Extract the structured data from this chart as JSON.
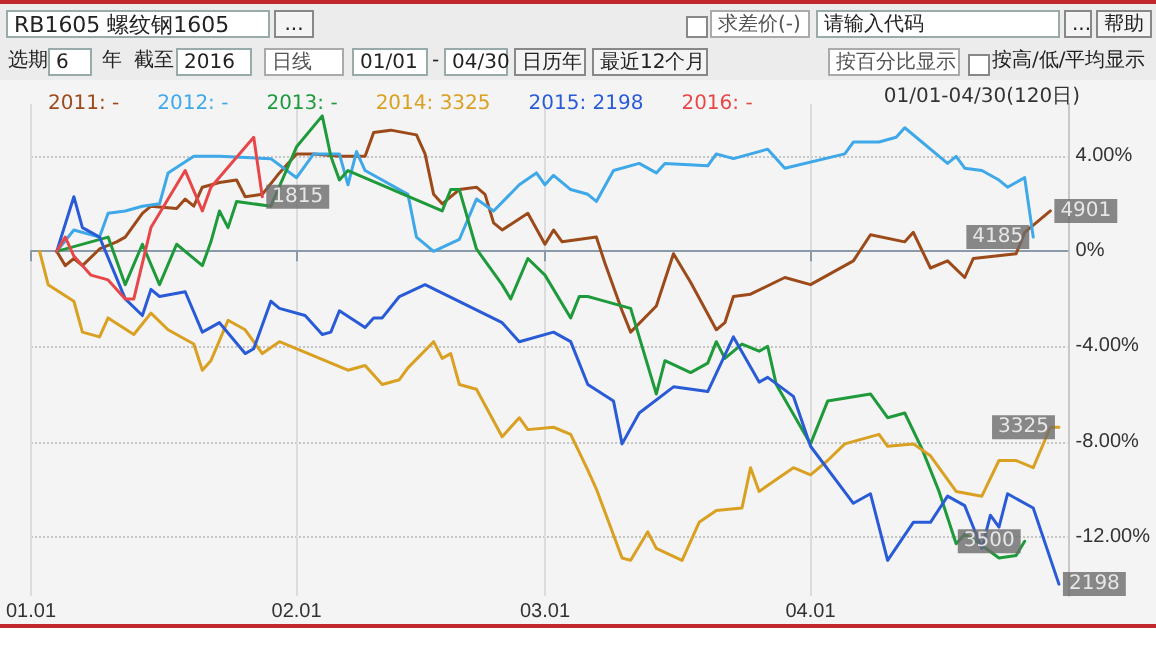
{
  "chart_data": {
    "type": "line",
    "title": "RB1605  螺纹钢1605",
    "subtitle": "01/01-04/30(120日)",
    "annotations": [
      "...",
      "求差价(-)",
      "请输入代码",
      "...",
      "帮助",
      "选期",
      "6",
      "年",
      "截至",
      "2016",
      "日线",
      "01/01",
      "-",
      "04/30",
      "日历年",
      "最近12个月",
      "按百分比显示",
      "按高/低/平均显示",
      {
        "text": "1815",
        "x": "--01-28",
        "y": 2.3
      },
      {
        "text": "4901",
        "x": "--04-29",
        "y": 1.7
      },
      {
        "text": "4185",
        "x": "--04-27",
        "y": 0.6
      },
      {
        "text": "3325",
        "x": "--04-30",
        "y": -7.4
      },
      {
        "text": "3500",
        "x": "--04-26",
        "y": -12.2
      },
      {
        "text": "2198",
        "x": "--04-30",
        "y": -14.0
      }
    ],
    "xlim": [
      "--01-01",
      "--05-01"
    ],
    "xticks": [
      {
        "value": "--01-01",
        "label": "01.01"
      },
      {
        "value": "--02-01",
        "label": "02.01"
      },
      {
        "value": "--03-01",
        "label": "03.01"
      },
      {
        "value": "--04-01",
        "label": "04.01"
      }
    ],
    "ylim": [
      -14.5,
      6.2
    ],
    "yticks": [
      {
        "value": 4,
        "label": "4.00%"
      },
      {
        "value": 0,
        "label": "0%"
      },
      {
        "value": -4,
        "label": "-4.00%"
      },
      {
        "value": -8,
        "label": "-8.00%"
      },
      {
        "value": -12,
        "label": "-12.00%"
      }
    ],
    "grid": true,
    "legend": "top left",
    "series": [
      {
        "name": "2011: -",
        "color": "#9c4a1a",
        "x": [
          "--01-04",
          "--01-05",
          "--01-06",
          "--01-07",
          "--01-09",
          "--01-11",
          "--01-12",
          "--01-14",
          "--01-15",
          "--01-18",
          "--01-19",
          "--01-20",
          "--01-21",
          "--01-23",
          "--01-25",
          "--01-26",
          "--01-28",
          "--01-30",
          "--02-01",
          "--02-03",
          "--02-06",
          "--02-09",
          "--02-10",
          "--02-12",
          "--02-15",
          "--02-16",
          "--02-17",
          "--02-18",
          "--02-20",
          "--02-22",
          "--02-23",
          "--02-24",
          "--02-25",
          "--02-28",
          "--03-01",
          "--03-02",
          "--03-03",
          "--03-07",
          "--03-08",
          "--03-10",
          "--03-11",
          "--03-14",
          "--03-16",
          "--03-18",
          "--03-21",
          "--03-22",
          "--03-23",
          "--03-25",
          "--03-29",
          "--04-01",
          "--04-06",
          "--04-08",
          "--04-12",
          "--04-13",
          "--04-15",
          "--04-17",
          "--04-19",
          "--04-20",
          "--04-25",
          "--04-26",
          "--04-29"
        ],
        "values": [
          0,
          -0.6,
          -0.3,
          -0.6,
          0.1,
          0.4,
          0.6,
          1.6,
          1.9,
          1.8,
          2.2,
          1.9,
          2.7,
          2.9,
          3.0,
          2.3,
          2.4,
          3.3,
          4.1,
          4.1,
          4.0,
          4.0,
          5.0,
          5.1,
          4.9,
          4.1,
          2.4,
          2.0,
          2.6,
          2.7,
          2.4,
          1.2,
          0.9,
          1.6,
          0.3,
          0.9,
          0.4,
          0.6,
          -0.5,
          -2.5,
          -3.4,
          -2.3,
          -0.1,
          -1.3,
          -3.3,
          -3.0,
          -1.9,
          -1.8,
          -1.1,
          -1.4,
          -0.4,
          0.7,
          0.4,
          0.8,
          -0.7,
          -0.4,
          -1.1,
          -0.3,
          -0.1,
          0.8,
          1.7
        ]
      },
      {
        "name": "2012: -",
        "color": "#3ea8e8",
        "x": [
          "--01-04",
          "--01-06",
          "--01-09",
          "--01-10",
          "--01-12",
          "--01-14",
          "--01-16",
          "--01-17",
          "--01-20",
          "--01-23",
          "--01-29",
          "--02-01",
          "--02-03",
          "--02-06",
          "--02-07",
          "--02-08",
          "--02-09",
          "--02-14",
          "--02-15",
          "--02-17",
          "--02-20",
          "--02-22",
          "--02-24",
          "--02-27",
          "--02-29",
          "--03-01",
          "--03-02",
          "--03-04",
          "--03-06",
          "--03-07",
          "--03-09",
          "--03-12",
          "--03-14",
          "--03-15",
          "--03-20",
          "--03-21",
          "--03-23",
          "--03-27",
          "--03-29",
          "--04-05",
          "--04-06",
          "--04-09",
          "--04-11",
          "--04-12",
          "--04-17",
          "--04-18",
          "--04-19",
          "--04-21",
          "--04-23",
          "--04-24",
          "--04-26",
          "--04-27"
        ],
        "values": [
          0,
          0.9,
          0.6,
          1.6,
          1.7,
          1.9,
          2.0,
          3.3,
          4.0,
          4.0,
          3.9,
          3.1,
          4.1,
          4.1,
          2.8,
          4.2,
          3.4,
          2.4,
          0.6,
          0,
          0.5,
          2.2,
          1.7,
          2.8,
          3.3,
          2.8,
          3.2,
          2.6,
          2.4,
          2.1,
          3.4,
          3.7,
          3.3,
          3.7,
          3.6,
          4.1,
          3.9,
          4.3,
          3.5,
          4.1,
          4.6,
          4.6,
          4.8,
          5.2,
          3.7,
          4.0,
          3.5,
          3.4,
          3.0,
          2.7,
          3.1,
          0.6
        ]
      },
      {
        "name": "2013: -",
        "color": "#1e9a3a",
        "x": [
          "--01-04",
          "--01-08",
          "--01-10",
          "--01-12",
          "--01-14",
          "--01-16",
          "--01-18",
          "--01-21",
          "--01-22",
          "--01-23",
          "--01-24",
          "--01-25",
          "--01-29",
          "--02-01",
          "--02-04",
          "--02-05",
          "--02-06",
          "--02-07",
          "--02-18",
          "--02-19",
          "--02-20",
          "--02-22",
          "--02-25",
          "--02-26",
          "--02-28",
          "--03-01",
          "--03-04",
          "--03-05",
          "--03-06",
          "--03-07",
          "--03-11",
          "--03-14",
          "--03-15",
          "--03-18",
          "--03-20",
          "--03-21",
          "--03-22",
          "--03-24",
          "--03-26",
          "--03-27",
          "--03-28",
          "--04-01",
          "--04-03",
          "--04-08",
          "--04-10",
          "--04-12",
          "--04-14",
          "--04-16",
          "--04-18",
          "--04-19",
          "--04-20",
          "--04-23",
          "--04-25",
          "--04-26"
        ],
        "values": [
          0,
          0.4,
          0.6,
          -1.4,
          0.3,
          -1.4,
          0.3,
          -0.6,
          0.4,
          1.7,
          1.0,
          2.1,
          1.9,
          4.4,
          5.7,
          4.0,
          3.0,
          3.4,
          1.7,
          2.6,
          2.6,
          0.1,
          -1.4,
          -2.0,
          -0.3,
          -1.0,
          -2.8,
          -1.9,
          -1.9,
          -2.0,
          -2.4,
          -6.0,
          -4.6,
          -5.1,
          -4.7,
          -3.8,
          -4.5,
          -3.9,
          -4.2,
          -4.0,
          -5.6,
          -8.1,
          -6.3,
          -6.0,
          -7.0,
          -6.8,
          -8.3,
          -10.1,
          -12.3,
          -11.9,
          -12.1,
          -12.9,
          -12.8,
          -12.2
        ]
      },
      {
        "name": "2014: 3325",
        "color": "#d9a021",
        "x": [
          "--01-02",
          "--01-03",
          "--01-06",
          "--01-07",
          "--01-09",
          "--01-10",
          "--01-13",
          "--01-15",
          "--01-17",
          "--01-20",
          "--01-21",
          "--01-22",
          "--01-24",
          "--01-26",
          "--01-28",
          "--01-30",
          "--02-07",
          "--02-09",
          "--02-11",
          "--02-13",
          "--02-14",
          "--02-17",
          "--02-18",
          "--02-19",
          "--02-20",
          "--02-22",
          "--02-25",
          "--02-27",
          "--02-28",
          "--03-02",
          "--03-04",
          "--03-06",
          "--03-07",
          "--03-10",
          "--03-11",
          "--03-13",
          "--03-14",
          "--03-17",
          "--03-19",
          "--03-21",
          "--03-24",
          "--03-25",
          "--03-26",
          "--03-28",
          "--03-30",
          "--04-01",
          "--04-03",
          "--04-05",
          "--04-09",
          "--04-10",
          "--04-13",
          "--04-15",
          "--04-18",
          "--04-21",
          "--04-23",
          "--04-25",
          "--04-27",
          "--04-29",
          "--04-30"
        ],
        "values": [
          0,
          -1.4,
          -2.1,
          -3.4,
          -3.6,
          -2.8,
          -3.5,
          -2.6,
          -3.3,
          -3.9,
          -5.0,
          -4.6,
          -2.9,
          -3.3,
          -4.3,
          -3.8,
          -5.0,
          -4.8,
          -5.6,
          -5.4,
          -4.9,
          -3.8,
          -4.5,
          -4.3,
          -5.6,
          -5.8,
          -7.8,
          -7.0,
          -7.5,
          -7.4,
          -7.7,
          -9.2,
          -10.0,
          -12.9,
          -13.0,
          -11.8,
          -12.5,
          -13.0,
          -11.4,
          -10.9,
          -10.8,
          -9.1,
          -10.1,
          -9.6,
          -9.1,
          -9.4,
          -8.8,
          -8.1,
          -7.7,
          -8.2,
          -8.1,
          -8.6,
          -10.1,
          -10.3,
          -8.8,
          -8.8,
          -9.1,
          -7.4,
          -7.4
        ]
      },
      {
        "name": "2015: 2198",
        "color": "#2a5bd7",
        "x": [
          "--01-04",
          "--01-06",
          "--01-07",
          "--01-09",
          "--01-12",
          "--01-14",
          "--01-15",
          "--01-16",
          "--01-19",
          "--01-21",
          "--01-23",
          "--01-26",
          "--01-27",
          "--01-29",
          "--01-30",
          "--02-02",
          "--02-04",
          "--02-05",
          "--02-06",
          "--02-09",
          "--02-10",
          "--02-11",
          "--02-13",
          "--02-16",
          "--02-25",
          "--02-27",
          "--03-02",
          "--03-04",
          "--03-06",
          "--03-09",
          "--03-10",
          "--03-12",
          "--03-16",
          "--03-20",
          "--03-23",
          "--03-26",
          "--03-27",
          "--03-30",
          "--04-01",
          "--04-06",
          "--04-08",
          "--04-10",
          "--04-13",
          "--04-15",
          "--04-17",
          "--04-19",
          "--04-21",
          "--04-22",
          "--04-23",
          "--04-24",
          "--04-27",
          "--04-30"
        ],
        "values": [
          0,
          2.3,
          1.0,
          0.6,
          -2.0,
          -2.7,
          -1.6,
          -1.9,
          -1.7,
          -3.4,
          -3.0,
          -4.3,
          -4.1,
          -2.1,
          -2.4,
          -2.7,
          -3.5,
          -3.4,
          -2.5,
          -3.2,
          -2.8,
          -2.8,
          -1.9,
          -1.4,
          -3.0,
          -3.8,
          -3.4,
          -3.8,
          -5.6,
          -6.3,
          -8.1,
          -6.8,
          -5.7,
          -5.9,
          -3.6,
          -5.5,
          -5.3,
          -6.1,
          -8.2,
          -10.6,
          -10.2,
          -13.0,
          -11.4,
          -11.4,
          -10.3,
          -10.7,
          -12.5,
          -11.1,
          -11.6,
          -10.2,
          -10.8,
          -14.0
        ]
      },
      {
        "name": "2016: -",
        "color": "#e8474a",
        "x": [
          "--01-04",
          "--01-05",
          "--01-06",
          "--01-08",
          "--01-10",
          "--01-12",
          "--01-13",
          "--01-15",
          "--01-19",
          "--01-21",
          "--01-22",
          "--01-27",
          "--01-28"
        ],
        "values": [
          0,
          0.6,
          -0.2,
          -1.0,
          -1.2,
          -2.0,
          -2.0,
          1.0,
          3.4,
          1.7,
          2.7,
          4.8,
          2.3
        ]
      }
    ]
  }
}
